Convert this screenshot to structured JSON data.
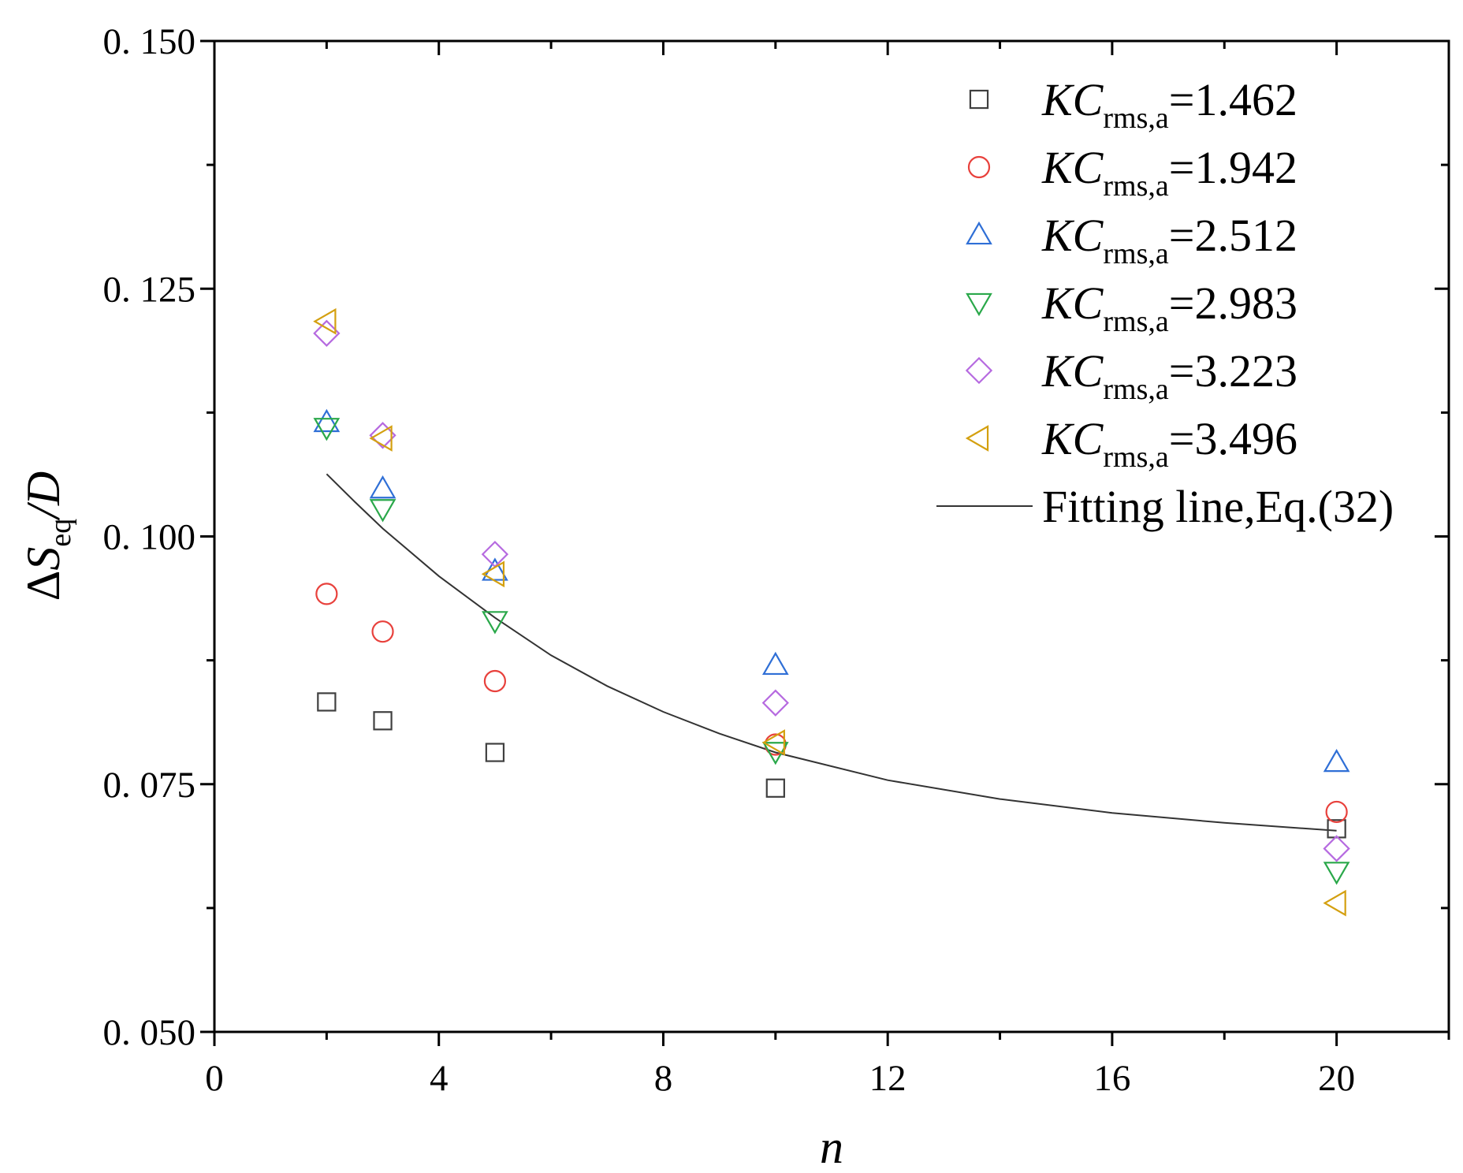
{
  "chart_data": {
    "type": "scatter",
    "title": "",
    "xlabel": "n",
    "ylabel": {
      "delta": "Δ",
      "var": "S",
      "sub": "eq",
      "tail": "/D"
    },
    "xlim": [
      0,
      22
    ],
    "ylim": [
      0.05,
      0.15
    ],
    "x_ticks": [
      0,
      4,
      8,
      12,
      16,
      20
    ],
    "x_tick_labels": [
      "0",
      "4",
      "8",
      "12",
      "16",
      "20"
    ],
    "y_ticks": [
      0.05,
      0.075,
      0.1,
      0.125,
      0.15
    ],
    "y_tick_labels": [
      "0. 050",
      "0. 075",
      "0. 100",
      "0. 125",
      "0. 150"
    ],
    "legend_position": "top-right",
    "series": [
      {
        "name": "KC_rms,a=1.462",
        "label": {
          "kc": "KC",
          "sub": "rms,a",
          "value": "=1.462"
        },
        "marker": "square",
        "color": "#404040",
        "x": [
          2,
          3,
          5,
          10,
          20
        ],
        "y": [
          0.0833,
          0.0814,
          0.0782,
          0.0746,
          0.0705
        ]
      },
      {
        "name": "KC_rms,a=1.942",
        "label": {
          "kc": "KC",
          "sub": "rms,a",
          "value": "=1.942"
        },
        "marker": "circle",
        "color": "#e8413c",
        "x": [
          2,
          3,
          5,
          10,
          20
        ],
        "y": [
          0.0942,
          0.0904,
          0.0854,
          0.079,
          0.0722
        ]
      },
      {
        "name": "KC_rms,a=2.512",
        "label": {
          "kc": "KC",
          "sub": "rms,a",
          "value": "=2.512"
        },
        "marker": "triangle-up",
        "color": "#2f6fd6",
        "x": [
          2,
          3,
          5,
          10,
          20
        ],
        "y": [
          0.1115,
          0.1048,
          0.0965,
          0.087,
          0.0772
        ]
      },
      {
        "name": "KC_rms,a=2.983",
        "label": {
          "kc": "KC",
          "sub": "rms,a",
          "value": "=2.983"
        },
        "marker": "triangle-down",
        "color": "#2aa84a",
        "x": [
          2,
          3,
          5,
          10,
          20
        ],
        "y": [
          0.111,
          0.1028,
          0.0915,
          0.0783,
          0.0662
        ]
      },
      {
        "name": "KC_rms,a=3.223",
        "label": {
          "kc": "KC",
          "sub": "rms,a",
          "value": "=3.223"
        },
        "marker": "diamond",
        "color": "#b66ae0",
        "x": [
          2,
          3,
          5,
          10,
          20
        ],
        "y": [
          0.1205,
          0.1102,
          0.0982,
          0.0832,
          0.0685
        ]
      },
      {
        "name": "KC_rms,a=3.496",
        "label": {
          "kc": "KC",
          "sub": "rms,a",
          "value": "=3.496"
        },
        "marker": "triangle-left",
        "color": "#d4a010",
        "x": [
          2,
          3,
          5,
          10,
          20
        ],
        "y": [
          0.1217,
          0.1099,
          0.0962,
          0.0792,
          0.063
        ]
      }
    ],
    "fit_line": {
      "name": "Fitting line,Eq.(32)",
      "color": "#333333",
      "x": [
        2,
        2.5,
        3,
        4,
        5,
        6,
        7,
        8,
        9,
        10,
        12,
        14,
        16,
        18,
        20
      ],
      "y": [
        0.1063,
        0.1035,
        0.1008,
        0.096,
        0.0918,
        0.088,
        0.0849,
        0.0823,
        0.0801,
        0.0782,
        0.0754,
        0.0735,
        0.0721,
        0.0711,
        0.0703
      ]
    }
  }
}
